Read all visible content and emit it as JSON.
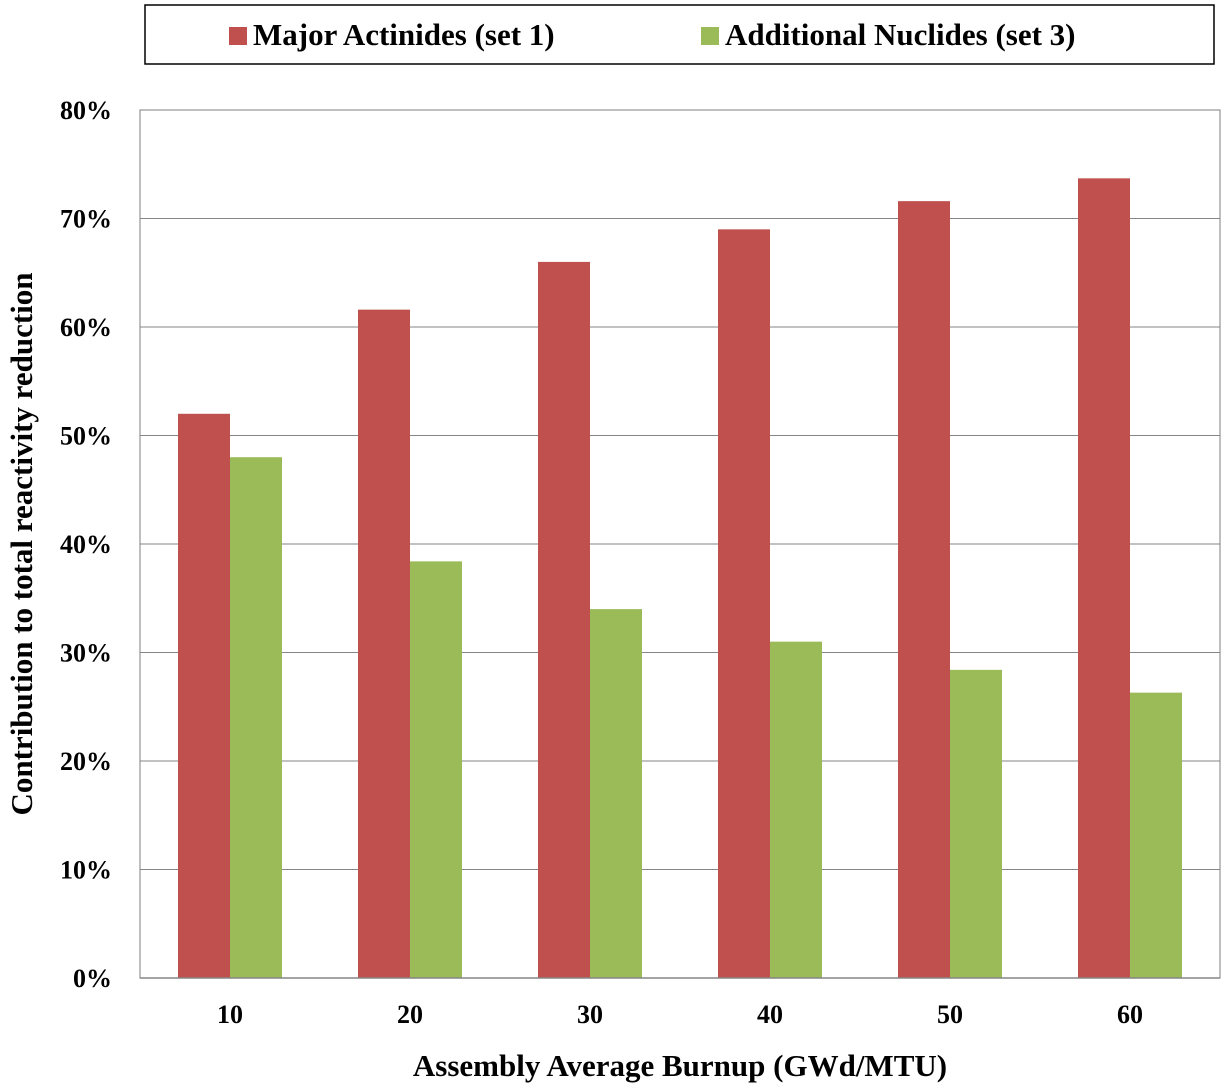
{
  "chart_data": {
    "type": "bar",
    "categories": [
      "10",
      "20",
      "30",
      "40",
      "50",
      "60"
    ],
    "series": [
      {
        "name": "Major Actinides (set 1)",
        "color": "#C0504D",
        "values": [
          52.0,
          61.6,
          66.0,
          69.0,
          71.6,
          73.7
        ]
      },
      {
        "name": "Additional Nuclides (set 3)",
        "color": "#9BBB59",
        "values": [
          48.0,
          38.4,
          34.0,
          31.0,
          28.4,
          26.3
        ]
      }
    ],
    "xlabel": "Assembly Average Burnup (GWd/MTU)",
    "ylabel": "Contribution to total reactivity reduction",
    "ylim": [
      0,
      80
    ],
    "yticks": [
      "0%",
      "10%",
      "20%",
      "30%",
      "40%",
      "50%",
      "60%",
      "70%",
      "80%"
    ],
    "grid": "horizontal major gridlines",
    "legend_position": "top"
  }
}
